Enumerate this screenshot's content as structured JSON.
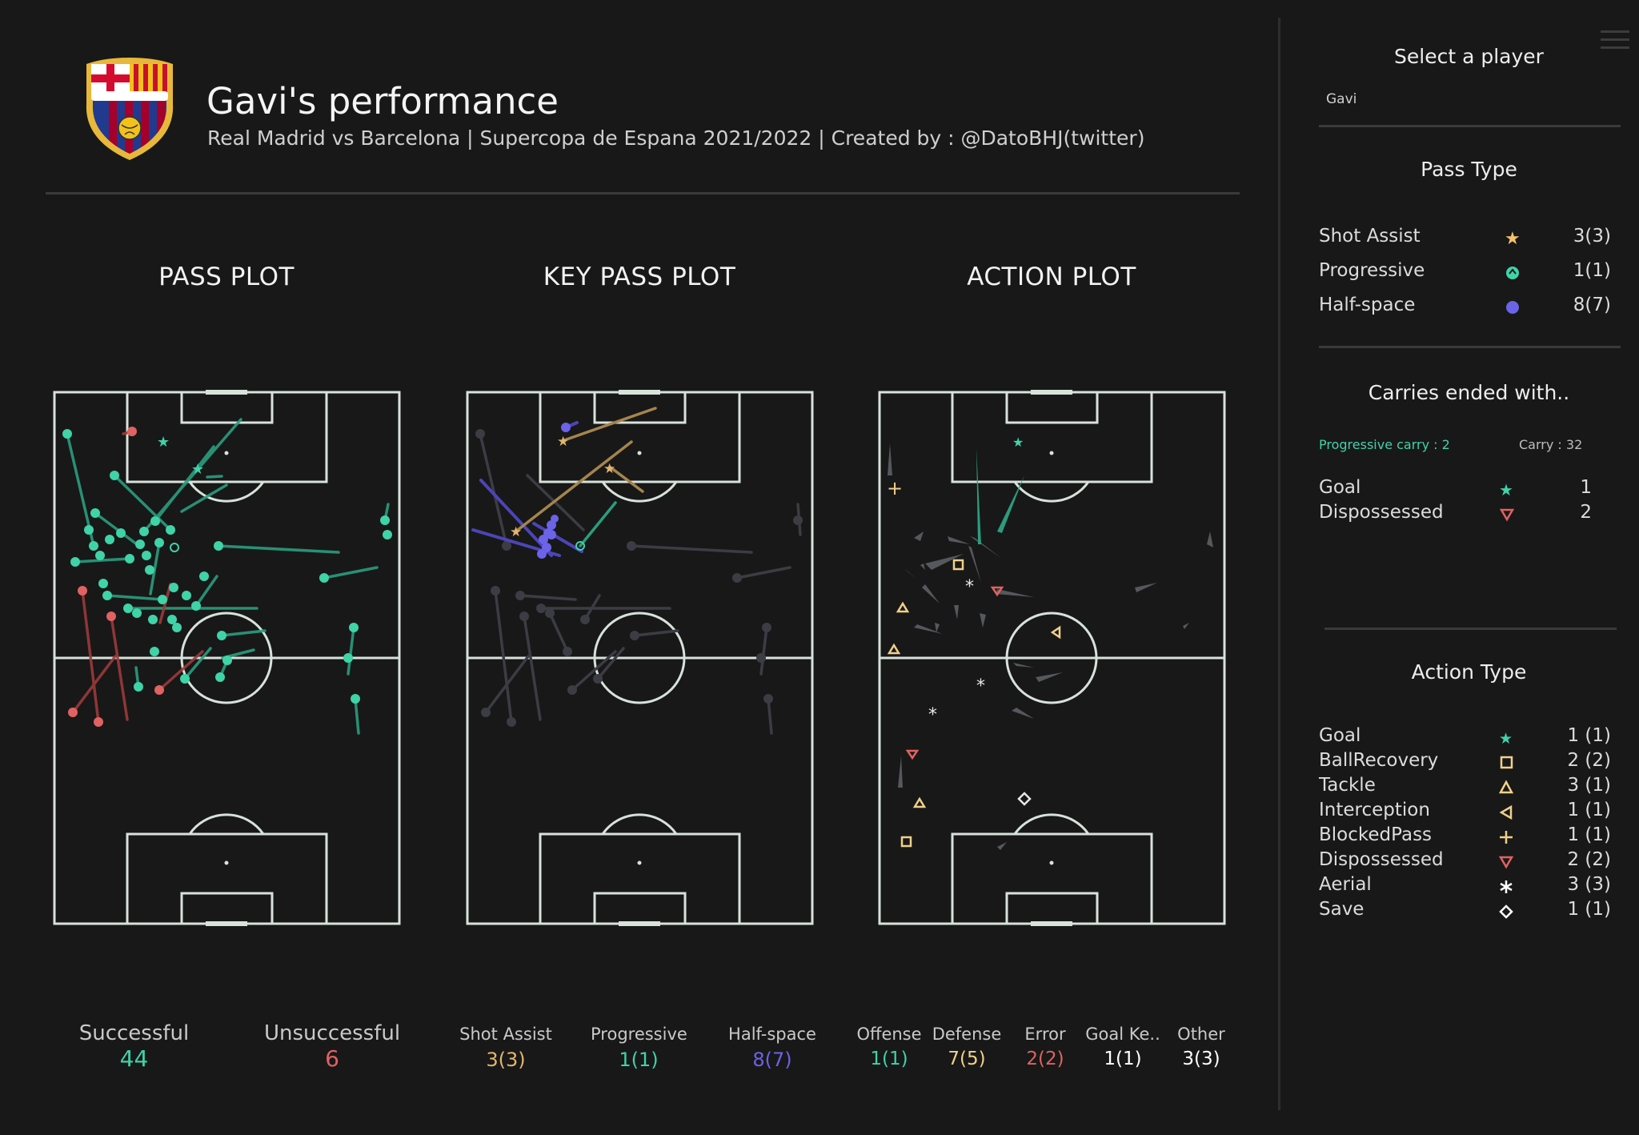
{
  "header": {
    "title": "Gavi's performance",
    "subtitle": "Real Madrid vs Barcelona | Supercopa de Espana 2021/2022 | Created by : @DatoBHJ(twitter)",
    "logo_text": "FCB"
  },
  "plots": {
    "pass_title": "PASS PLOT",
    "keypass_title": "KEY PASS PLOT",
    "action_title": "ACTION PLOT"
  },
  "pass_stats": [
    {
      "label": "Successful",
      "value": "44",
      "color": "#3fd3a8"
    },
    {
      "label": "Unsuccessful",
      "value": "6",
      "color": "#e06262"
    }
  ],
  "keypass_stats": [
    {
      "label": "Shot Assist",
      "value": "3(3)",
      "color": "#e3b56b"
    },
    {
      "label": "Progressive",
      "value": "1(1)",
      "color": "#3fd3a8"
    },
    {
      "label": "Half-space",
      "value": "8(7)",
      "color": "#6b63e8"
    }
  ],
  "action_stats": [
    {
      "label": "Offense",
      "value": "1(1)",
      "color": "#3fd3a8"
    },
    {
      "label": "Defense",
      "value": "7(5)",
      "color": "#f0d08a"
    },
    {
      "label": "Error",
      "value": "2(2)",
      "color": "#e06262"
    },
    {
      "label": "Goal Ke..",
      "value": "1(1)",
      "color": "#ffffff"
    },
    {
      "label": "Other",
      "value": "3(3)",
      "color": "#ffffff"
    }
  ],
  "sidebar": {
    "select_label": "Select a player",
    "selected_player": "Gavi",
    "pass_type_heading": "Pass Type",
    "pass_types": [
      {
        "name": "Shot Assist",
        "icon": "star-icon",
        "color": "#f5c26b",
        "count": "3(3)"
      },
      {
        "name": "Progressive",
        "icon": "progressive-circle-icon",
        "color": "#3fd3a8",
        "count": "1(1)"
      },
      {
        "name": "Half-space",
        "icon": "dot-icon",
        "color": "#6b63e8",
        "count": "8(7)"
      }
    ],
    "carries_heading": "Carries ended with..",
    "progressive_carry": "Progressive carry : 2",
    "carry": "Carry : 32",
    "carries": [
      {
        "name": "Goal",
        "icon": "star-icon",
        "color": "#3fd3a8",
        "count": "1"
      },
      {
        "name": "Dispossessed",
        "icon": "triangle-down-icon",
        "color": "#e06262",
        "count": "2"
      }
    ],
    "action_type_heading": "Action Type",
    "action_types": [
      {
        "name": "Goal",
        "icon": "star-icon",
        "color": "#3fd3a8",
        "count": "1 (1)"
      },
      {
        "name": "BallRecovery",
        "icon": "square-icon",
        "color": "#f0d08a",
        "count": "2 (2)"
      },
      {
        "name": "Tackle",
        "icon": "triangle-up-icon",
        "color": "#f0d08a",
        "count": "3 (1)"
      },
      {
        "name": "Interception",
        "icon": "triangle-left-icon",
        "color": "#f0d08a",
        "count": "1 (1)"
      },
      {
        "name": "BlockedPass",
        "icon": "plus-icon",
        "color": "#f0d08a",
        "count": "1 (1)"
      },
      {
        "name": "Dispossessed",
        "icon": "triangle-down-icon",
        "color": "#e06262",
        "count": "2 (2)"
      },
      {
        "name": "Aerial",
        "icon": "asterisk-icon",
        "color": "#ffffff",
        "count": "3 (3)"
      },
      {
        "name": "Save",
        "icon": "diamond-icon",
        "color": "#ffffff",
        "count": "1 (1)"
      }
    ]
  }
}
